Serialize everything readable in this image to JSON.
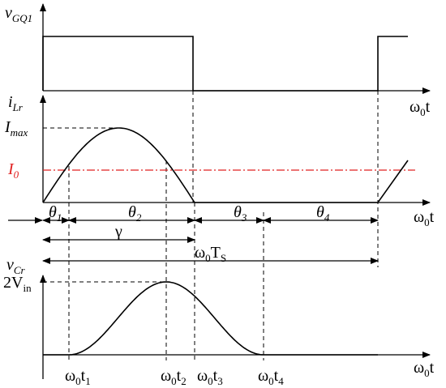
{
  "labels": {
    "v_gq1": [
      "v",
      "GQ1"
    ],
    "axis_top": [
      "ω",
      "0",
      "t"
    ],
    "i_lr": [
      "i",
      "Lr"
    ],
    "i_max": [
      "I",
      "max"
    ],
    "i_0": [
      "I",
      "0"
    ],
    "axis_mid": [
      "ω",
      "0",
      "t"
    ],
    "theta_1": [
      "θ",
      "1"
    ],
    "theta_2": [
      "θ",
      "2"
    ],
    "theta_3": [
      "θ",
      "3"
    ],
    "theta_4": [
      "θ",
      "4"
    ],
    "gamma": [
      "γ"
    ],
    "omega_ts": [
      "ω",
      "0",
      "T",
      "S"
    ],
    "v_cr": [
      "v",
      "Cr"
    ],
    "two_vin": [
      "2V",
      "in"
    ],
    "omega_t1": [
      "ω",
      "0",
      "t",
      "1"
    ],
    "omega_t2": [
      "ω",
      "0",
      "t",
      "2"
    ],
    "omega_t3": [
      "ω",
      "0",
      "t",
      "3"
    ],
    "omega_t4": [
      "ω",
      "0",
      "t",
      "4"
    ],
    "axis_bottom": [
      "ω",
      "0",
      "t"
    ]
  }
}
